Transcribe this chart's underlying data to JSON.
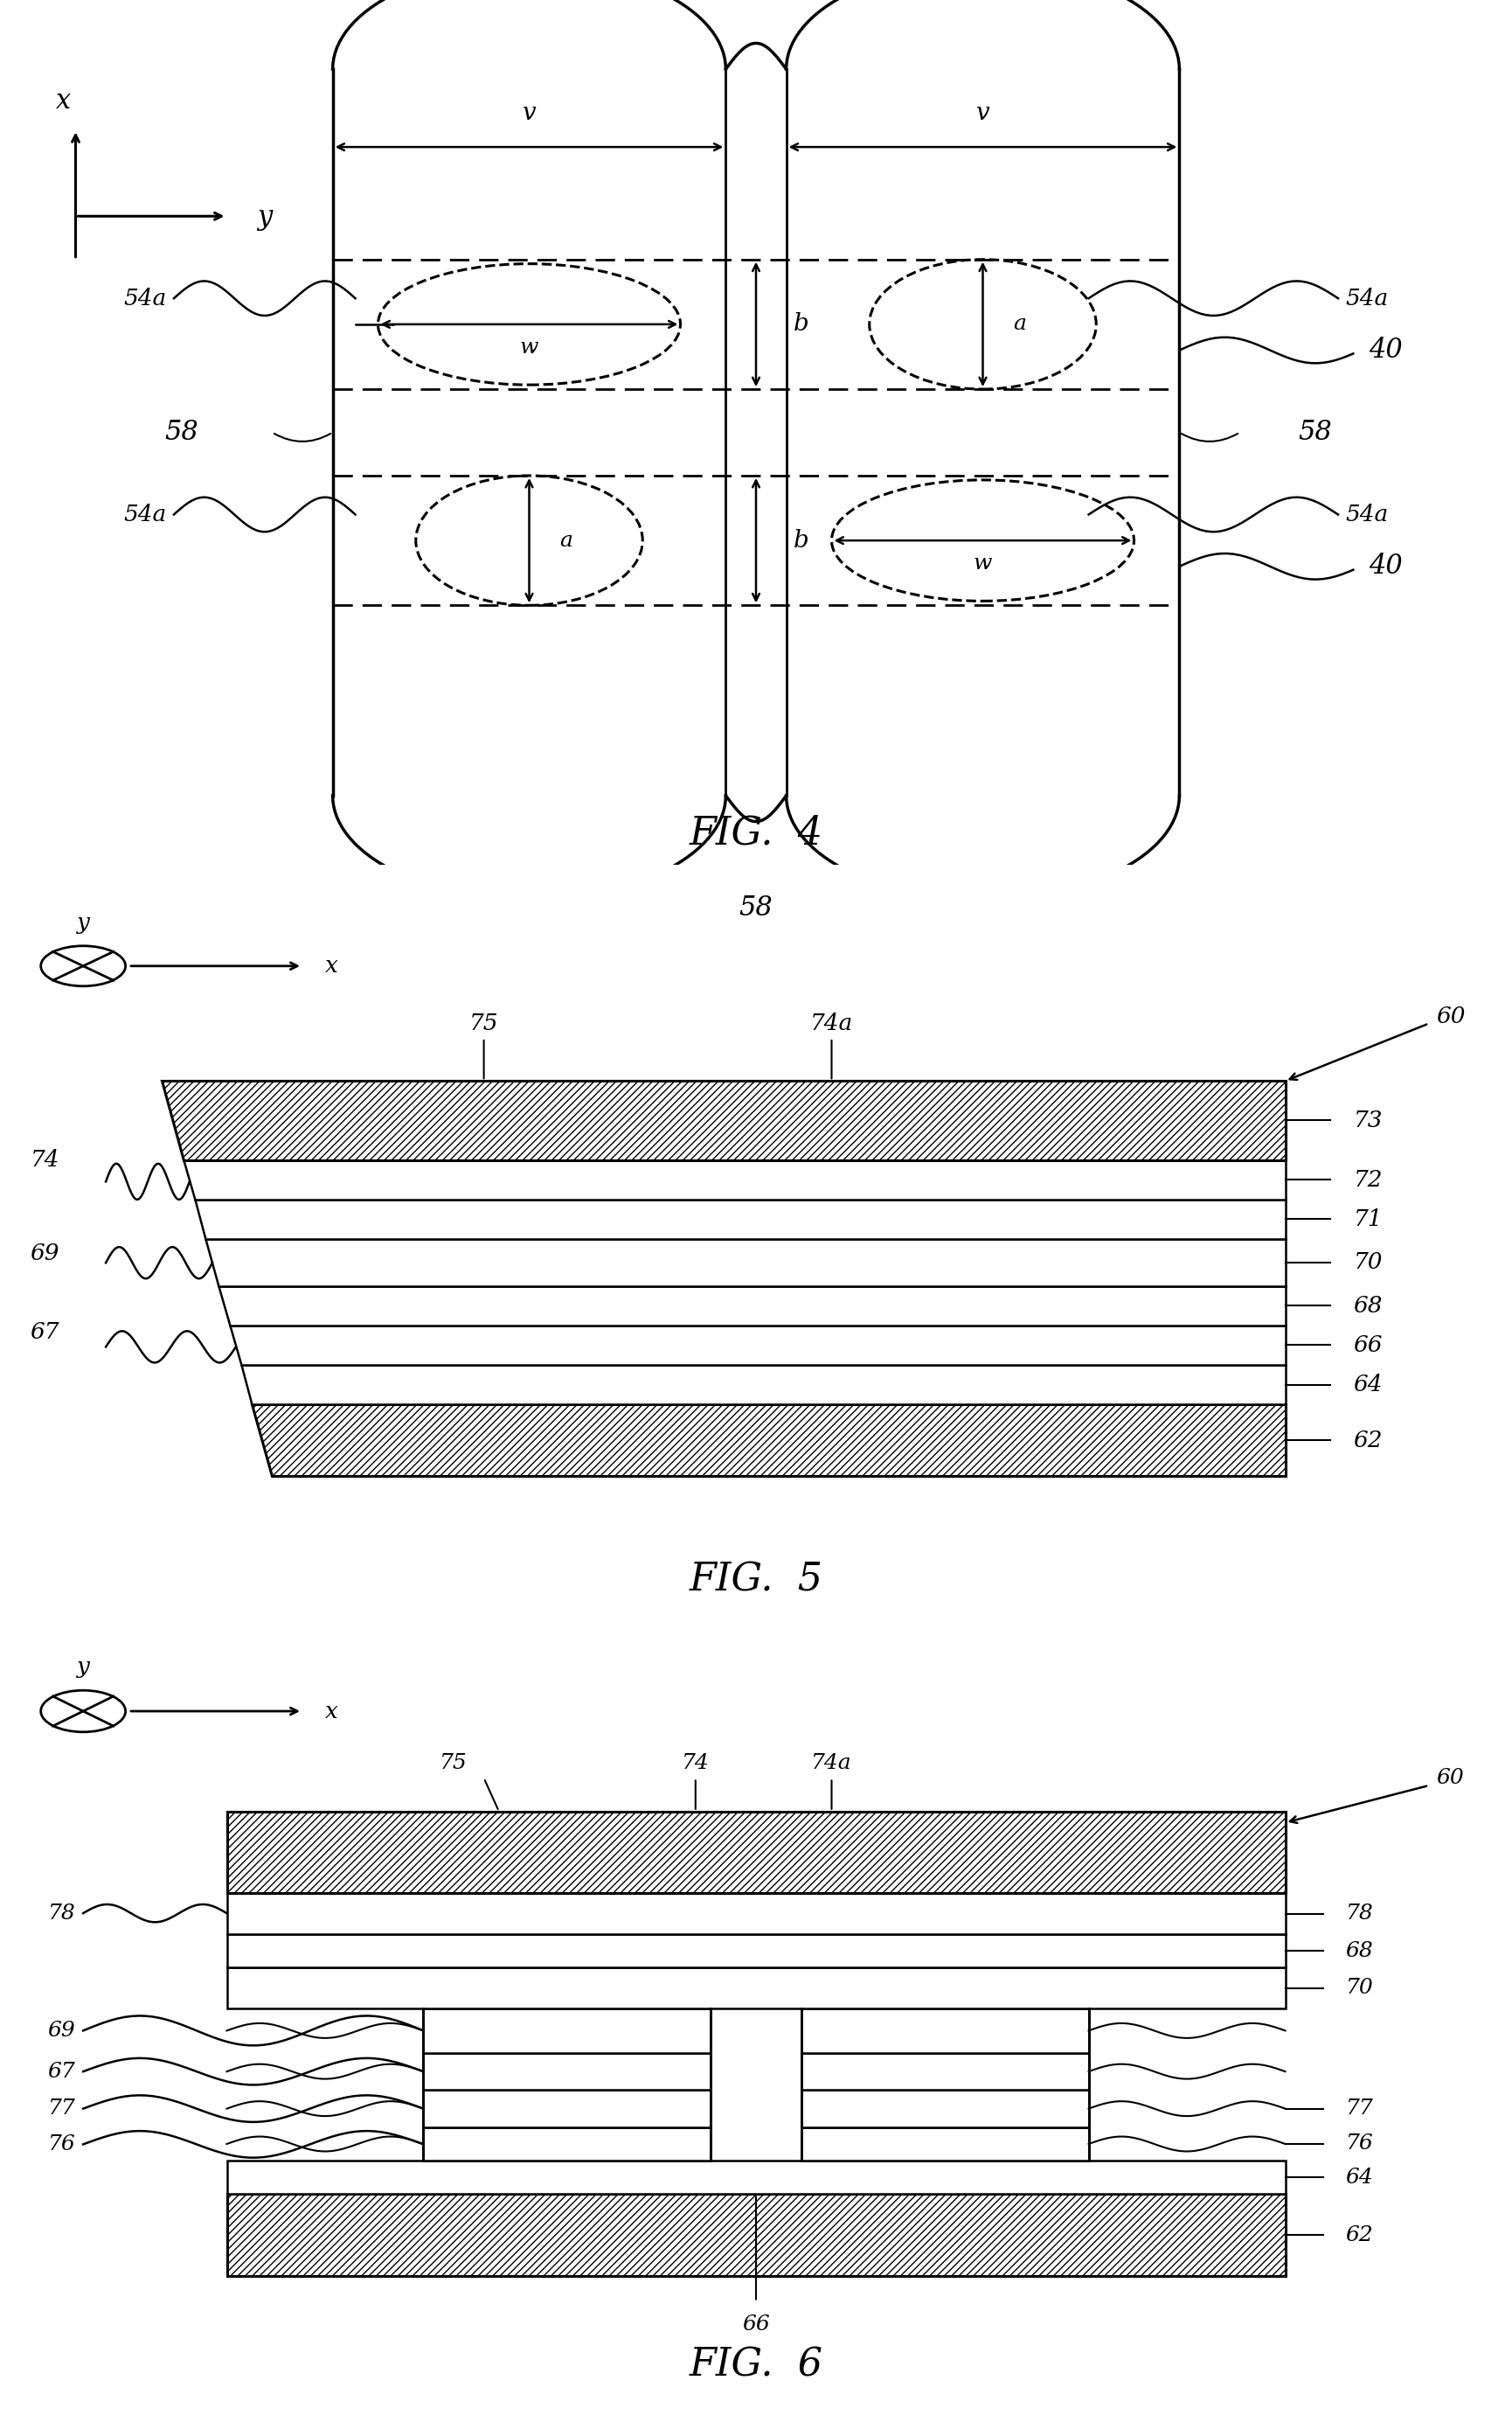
{
  "bg_color": "#ffffff",
  "line_color": "#000000",
  "fig_width": 17.3,
  "fig_height": 27.86,
  "fig4_title": "FIG.  4",
  "fig5_title": "FIG.  5",
  "fig6_title": "FIG.  6"
}
